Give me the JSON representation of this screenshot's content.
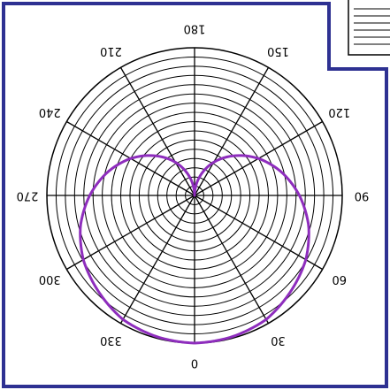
{
  "chart_data": {
    "type": "line",
    "projection": "polar",
    "orientation": "rotated-180",
    "angle_zero_direction": "bottom",
    "angle_direction": "counterclockwise",
    "radial_range": [
      0,
      1
    ],
    "radial_grid": "on",
    "angular_grid_step_deg": 30,
    "angle_tick_labels": [
      "0",
      "30",
      "60",
      "90",
      "120",
      "150",
      "180",
      "210",
      "240",
      "270",
      "300",
      "330"
    ],
    "series": [
      {
        "color": "#8e2dbd",
        "description": "cardioid-like pattern, zero at the 180 direction, maximum at 0",
        "theta": [
          0,
          15,
          30,
          45,
          60,
          75,
          90,
          105,
          120,
          135,
          150,
          165,
          180,
          195,
          210,
          225,
          240,
          255,
          270,
          285,
          300,
          315,
          330,
          345,
          360
        ],
        "r": [
          1.0,
          0.99,
          0.97,
          0.92,
          0.87,
          0.8,
          0.71,
          0.61,
          0.5,
          0.38,
          0.26,
          0.13,
          0.0,
          0.13,
          0.26,
          0.38,
          0.5,
          0.61,
          0.71,
          0.8,
          0.87,
          0.92,
          0.97,
          0.99,
          1.0
        ]
      }
    ]
  },
  "colors": {
    "frame": "#2e3192",
    "grid": "#000000",
    "series": "#8e2dbd",
    "background": "#ffffff"
  }
}
